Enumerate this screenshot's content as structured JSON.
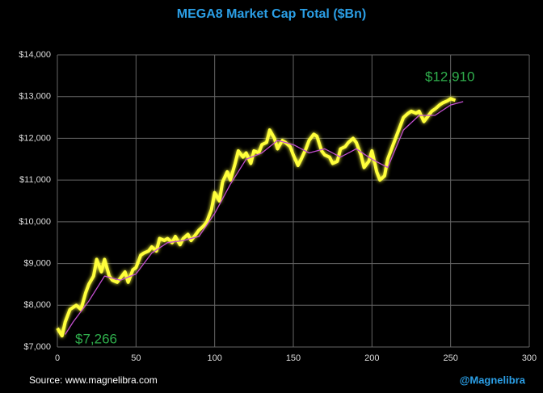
{
  "chart_data": {
    "type": "line",
    "title": "MEGA8 Market Cap Total ($Bn)",
    "source": "Source: www.magnelibra.com",
    "credit": "@Magnelibra",
    "annotations": [
      "$12,910",
      "$7,266"
    ],
    "xlim": [
      0,
      300
    ],
    "xticks": [
      0,
      50,
      100,
      150,
      200,
      250,
      300
    ],
    "ylim": [
      7000,
      14000
    ],
    "yticks": [
      {
        "value": 7000,
        "label": "$7,000"
      },
      {
        "value": 8000,
        "label": "$8,000"
      },
      {
        "value": 9000,
        "label": "$9,000"
      },
      {
        "value": 10000,
        "label": "$10,000"
      },
      {
        "value": 11000,
        "label": "$11,000"
      },
      {
        "value": 12000,
        "label": "$12,000"
      },
      {
        "value": 13000,
        "label": "$13,000"
      },
      {
        "value": 14000,
        "label": "$14,000"
      }
    ],
    "grid": true,
    "series": [
      {
        "color": "#ffff3a",
        "x": [
          0,
          3,
          5,
          8,
          12,
          15,
          18,
          20,
          23,
          25,
          28,
          30,
          33,
          35,
          38,
          40,
          43,
          45,
          48,
          50,
          53,
          55,
          58,
          60,
          63,
          65,
          68,
          70,
          73,
          75,
          78,
          80,
          83,
          85,
          88,
          90,
          93,
          95,
          98,
          100,
          103,
          105,
          108,
          110,
          113,
          115,
          118,
          120,
          123,
          125,
          128,
          130,
          133,
          135,
          138,
          140,
          143,
          145,
          148,
          150,
          153,
          155,
          158,
          160,
          163,
          165,
          168,
          170,
          173,
          175,
          178,
          180,
          183,
          185,
          188,
          190,
          193,
          195,
          198,
          200,
          203,
          205,
          208,
          210,
          213,
          215,
          218,
          220,
          223,
          225,
          228,
          230,
          233,
          235,
          238,
          240,
          243,
          245,
          248,
          250,
          253
        ],
        "values": [
          7450,
          7266,
          7600,
          7900,
          8000,
          7900,
          8300,
          8500,
          8700,
          9100,
          8800,
          9100,
          8700,
          8600,
          8550,
          8650,
          8800,
          8550,
          8850,
          8900,
          9200,
          9250,
          9300,
          9400,
          9300,
          9600,
          9550,
          9600,
          9500,
          9650,
          9450,
          9600,
          9700,
          9550,
          9700,
          9800,
          9900,
          10000,
          10300,
          10700,
          10500,
          10950,
          11200,
          11000,
          11400,
          11700,
          11550,
          11650,
          11400,
          11700,
          11650,
          11850,
          11900,
          12200,
          12000,
          11750,
          11950,
          11900,
          11800,
          11600,
          11350,
          11500,
          11750,
          11950,
          12100,
          12050,
          11700,
          11600,
          11550,
          11400,
          11450,
          11750,
          11800,
          11900,
          12000,
          11900,
          11600,
          11300,
          11450,
          11700,
          11200,
          11000,
          11100,
          11500,
          11800,
          12000,
          12300,
          12500,
          12600,
          12650,
          12600,
          12650,
          12400,
          12500,
          12650,
          12700,
          12800,
          12850,
          12900,
          12950,
          12910
        ]
      },
      {
        "color": "#c34fd0",
        "x": [
          5,
          10,
          20,
          30,
          40,
          50,
          60,
          70,
          80,
          90,
          100,
          110,
          120,
          130,
          140,
          150,
          160,
          170,
          180,
          190,
          200,
          210,
          220,
          230,
          240,
          250,
          258
        ],
        "values": [
          7300,
          7600,
          8100,
          8700,
          8600,
          8750,
          9250,
          9500,
          9550,
          9650,
          10200,
          10900,
          11500,
          11650,
          11950,
          11850,
          11650,
          11750,
          11550,
          11750,
          11500,
          11300,
          12200,
          12550,
          12550,
          12800,
          12880
        ]
      }
    ]
  }
}
